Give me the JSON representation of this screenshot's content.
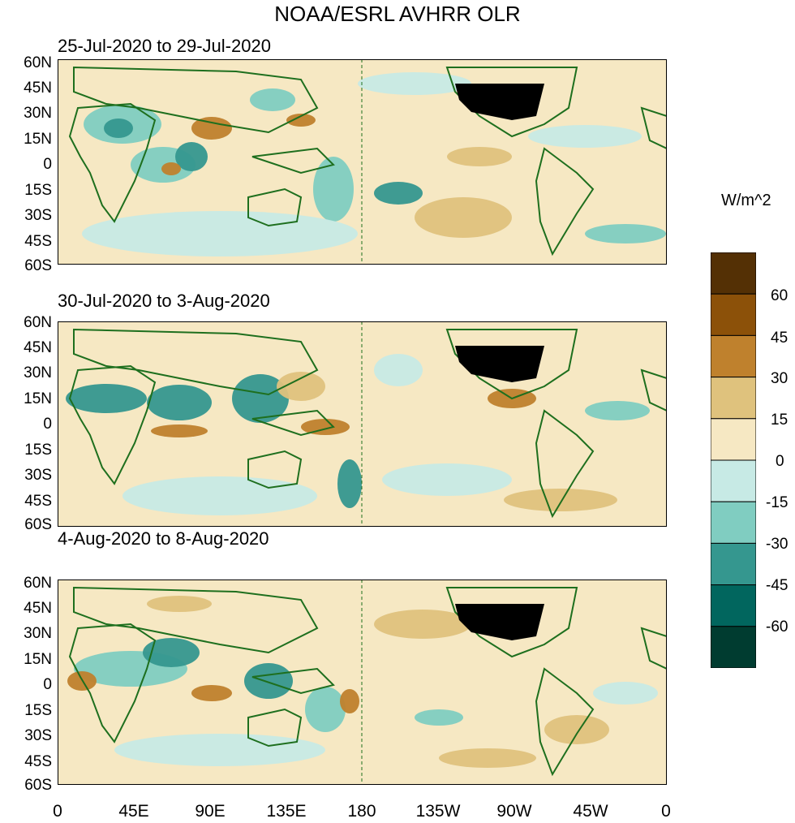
{
  "title": "NOAA/ESRL AVHRR OLR",
  "panels": [
    {
      "subtitle": "25-Jul-2020 to 29-Jul-2020"
    },
    {
      "subtitle": "30-Jul-2020 to 3-Aug-2020"
    },
    {
      "subtitle": "4-Aug-2020 to 8-Aug-2020"
    }
  ],
  "lat_labels": [
    "60N",
    "45N",
    "30N",
    "15N",
    "0",
    "15S",
    "30S",
    "45S",
    "60S"
  ],
  "lon_labels": [
    "0",
    "45E",
    "90E",
    "135E",
    "180",
    "135W",
    "90W",
    "45W",
    "0"
  ],
  "colorbar": {
    "units": "W/m^2",
    "tick_labels": [
      "60",
      "45",
      "30",
      "15",
      "0",
      "-15",
      "-30",
      "-45",
      "-60"
    ],
    "colors": [
      "#543005",
      "#8c5109",
      "#bf812d",
      "#dfc27d",
      "#f6e8c3",
      "#c7eae5",
      "#80cdc1",
      "#35978f",
      "#01665e",
      "#003c30"
    ]
  },
  "colors": {
    "land_outline": "#1e6f1e",
    "usa_fill": "#000000",
    "ocean_background": "#f6e8c3"
  }
}
